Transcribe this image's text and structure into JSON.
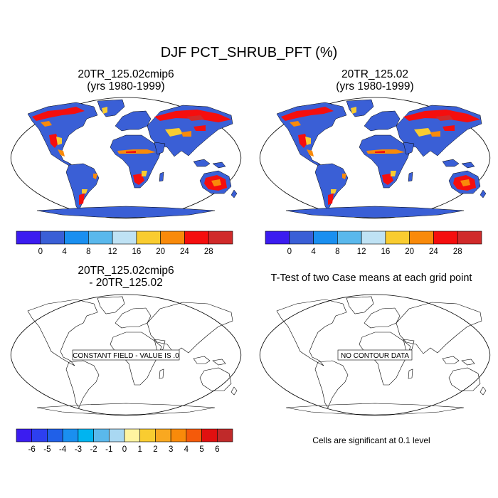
{
  "figure": {
    "title": "DJF PCT_SHRUB_PFT (%)"
  },
  "panels": [
    {
      "id": "case1",
      "title_line1": "20TR_125.02cmip6",
      "title_line2": "(yrs 1980-1999)"
    },
    {
      "id": "case2",
      "title_line1": "20TR_125.02",
      "title_line2": "(yrs 1980-1999)"
    },
    {
      "id": "diff",
      "title_line1": "20TR_125.02cmip6",
      "title_line2": "- 20TR_125.02",
      "message": "CONSTANT FIELD - VALUE IS .0"
    },
    {
      "id": "ttest",
      "title_line1": "T-Test of two Case means at each grid point",
      "message": "NO CONTOUR DATA"
    }
  ],
  "colorbars": {
    "abs": {
      "labels": [
        "0",
        "4",
        "8",
        "12",
        "16",
        "20",
        "24",
        "28"
      ],
      "colors": [
        "#3b1cf0",
        "#3a5fd6",
        "#1a8ff0",
        "#5ab8ec",
        "#bfe2f4",
        "#f9cc30",
        "#f98a0a",
        "#f50e0e",
        "#d02a2a"
      ]
    },
    "diff": {
      "labels": [
        "-6",
        "-5",
        "-4",
        "-3",
        "-2",
        "-1",
        "0",
        "1",
        "2",
        "3",
        "4",
        "5",
        "6"
      ],
      "colors": [
        "#3b1cf0",
        "#2d3ff0",
        "#2060e8",
        "#1a8ff0",
        "#00b4f0",
        "#5ab8ec",
        "#a9d8f2",
        "#fff4a0",
        "#f9cc30",
        "#f9a820",
        "#f98a0a",
        "#f55a0a",
        "#e01010",
        "#c02a2a"
      ]
    }
  },
  "note": "Cells are significant at 0.1 level",
  "map_colors": {
    "land_base": "#3a5fd6",
    "ocean": "#ffffff",
    "shrub_high": "#f50e0e",
    "shrub_mid": "#f98a0a",
    "shrub_low": "#f9cc30",
    "shrub_light": "#bfe2f4",
    "coast": "#000000"
  }
}
